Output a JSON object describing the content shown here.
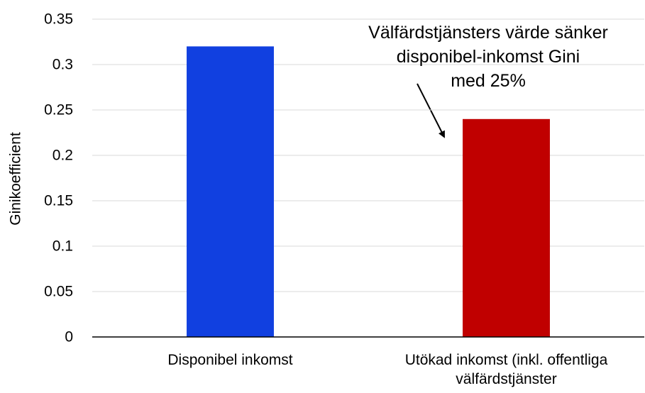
{
  "chart_data": {
    "type": "bar",
    "y_label": "Ginikoefficient",
    "annotation": [
      "Välfärdstjänsters värde sänker",
      "disponibel-inkomst Gini",
      "med 25%"
    ],
    "categories": [
      "Disponibel inkomst",
      "Utökad inkomst (inkl. offentliga välfärdstjänster"
    ],
    "values": [
      0.32,
      0.24
    ],
    "colors": [
      "#1140e0",
      "#c00000"
    ],
    "ylim": [
      0,
      0.35
    ],
    "yticks": [
      0,
      0.05,
      0.1,
      0.15,
      0.2,
      0.25,
      0.3,
      0.35
    ],
    "grid": true
  }
}
